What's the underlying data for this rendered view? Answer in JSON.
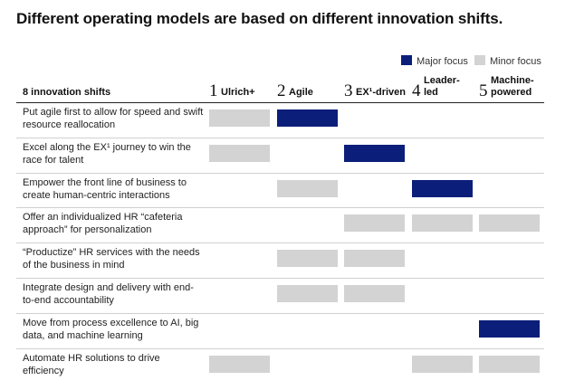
{
  "title": "Different operating models are based on different innovation shifts.",
  "legend": {
    "major": {
      "label": "Major focus",
      "color": "#0b1f7a"
    },
    "minor": {
      "label": "Minor focus",
      "color": "#d3d3d3"
    }
  },
  "row_header": "8 innovation shifts",
  "columns": [
    {
      "num": "1",
      "label": "Ulrich+"
    },
    {
      "num": "2",
      "label": "Agile"
    },
    {
      "num": "3",
      "label": "EX¹-driven"
    },
    {
      "num": "4",
      "label": "Leader-\nled"
    },
    {
      "num": "5",
      "label": "Machine-\npowered"
    }
  ],
  "chart_data": {
    "type": "table",
    "title": "Different operating models are based on different innovation shifts.",
    "categories": [
      "Ulrich+",
      "Agile",
      "EX¹-driven",
      "Leader-led",
      "Machine-powered"
    ],
    "rows": [
      {
        "label": "Put agile first to allow for speed and swift resource reallocation",
        "focus": [
          "minor",
          "major",
          "",
          "",
          ""
        ]
      },
      {
        "label": "Excel along the EX¹ journey to win the race for talent",
        "focus": [
          "minor",
          "",
          "major",
          "",
          ""
        ]
      },
      {
        "label": "Empower the front line of business to create human-centric interactions",
        "focus": [
          "",
          "minor",
          "",
          "major",
          ""
        ]
      },
      {
        "label": "Offer an individualized HR “cafeteria approach” for personalization",
        "focus": [
          "",
          "",
          "minor",
          "minor",
          "minor"
        ]
      },
      {
        "label": "“Productize” HR services with the needs of the business in mind",
        "focus": [
          "",
          "minor",
          "minor",
          "",
          ""
        ]
      },
      {
        "label": "Integrate design and delivery with end-to-end accountability",
        "focus": [
          "",
          "minor",
          "minor",
          "",
          ""
        ]
      },
      {
        "label": "Move from process excellence to AI, big data, and machine learning",
        "focus": [
          "",
          "",
          "",
          "",
          "major"
        ]
      },
      {
        "label": "Automate HR solutions to drive efficiency",
        "focus": [
          "minor",
          "",
          "",
          "minor",
          "minor"
        ]
      }
    ]
  }
}
